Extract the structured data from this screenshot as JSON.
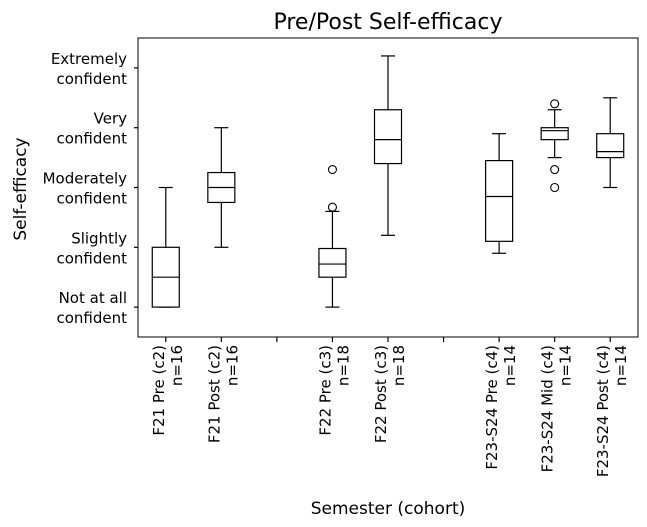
{
  "chart_data": {
    "type": "box",
    "title": "Pre/Post Self-efficacy",
    "xlabel": "Semester (cohort)",
    "ylabel": "Self-efficacy",
    "ylim": [
      0.5,
      5.5
    ],
    "yticks": [
      {
        "value": 1,
        "lines": [
          "Not at all",
          "confident"
        ]
      },
      {
        "value": 2,
        "lines": [
          "Slightly",
          "confident"
        ]
      },
      {
        "value": 3,
        "lines": [
          "Moderately",
          "confident"
        ]
      },
      {
        "value": 4,
        "lines": [
          "Very",
          "confident"
        ]
      },
      {
        "value": 5,
        "lines": [
          "Extremely",
          "confident"
        ]
      }
    ],
    "xlim": [
      0.5,
      9.5
    ],
    "xticks": [
      1,
      2,
      3,
      4,
      5,
      6,
      7,
      8,
      9
    ],
    "series": [
      {
        "pos": 1,
        "label": "F21 Pre (c2)",
        "n": "n=16",
        "whislo": 1.0,
        "q1": 1.0,
        "med": 1.5,
        "q3": 2.0,
        "whishi": 3.0,
        "fliers": []
      },
      {
        "pos": 2,
        "label": "F21 Post (c2)",
        "n": "n=16",
        "whislo": 2.0,
        "q1": 2.75,
        "med": 3.0,
        "q3": 3.25,
        "whishi": 4.0,
        "fliers": []
      },
      {
        "pos": 4,
        "label": "F22 Pre (c3)",
        "n": "n=18",
        "whislo": 1.0,
        "q1": 1.5,
        "med": 1.72,
        "q3": 1.98,
        "whishi": 2.6,
        "fliers": [
          2.67,
          3.3
        ]
      },
      {
        "pos": 5,
        "label": "F22 Post (c3)",
        "n": "n=18",
        "whislo": 2.2,
        "q1": 3.4,
        "med": 3.8,
        "q3": 4.3,
        "whishi": 5.2,
        "fliers": []
      },
      {
        "pos": 7,
        "label": "F23-S24 Pre (c4)",
        "n": "n=14",
        "whislo": 1.9,
        "q1": 2.1,
        "med": 2.85,
        "q3": 3.45,
        "whishi": 3.9,
        "fliers": []
      },
      {
        "pos": 8,
        "label": "F23-S24 Mid (c4)",
        "n": "n=14",
        "whislo": 3.5,
        "q1": 3.8,
        "med": 3.95,
        "q3": 4.0,
        "whishi": 4.3,
        "fliers": [
          4.4,
          3.3,
          3.0
        ]
      },
      {
        "pos": 9,
        "label": "F23-S24 Post (c4)",
        "n": "n=14",
        "whislo": 3.0,
        "q1": 3.5,
        "med": 3.6,
        "q3": 3.9,
        "whishi": 4.5,
        "fliers": []
      }
    ]
  }
}
